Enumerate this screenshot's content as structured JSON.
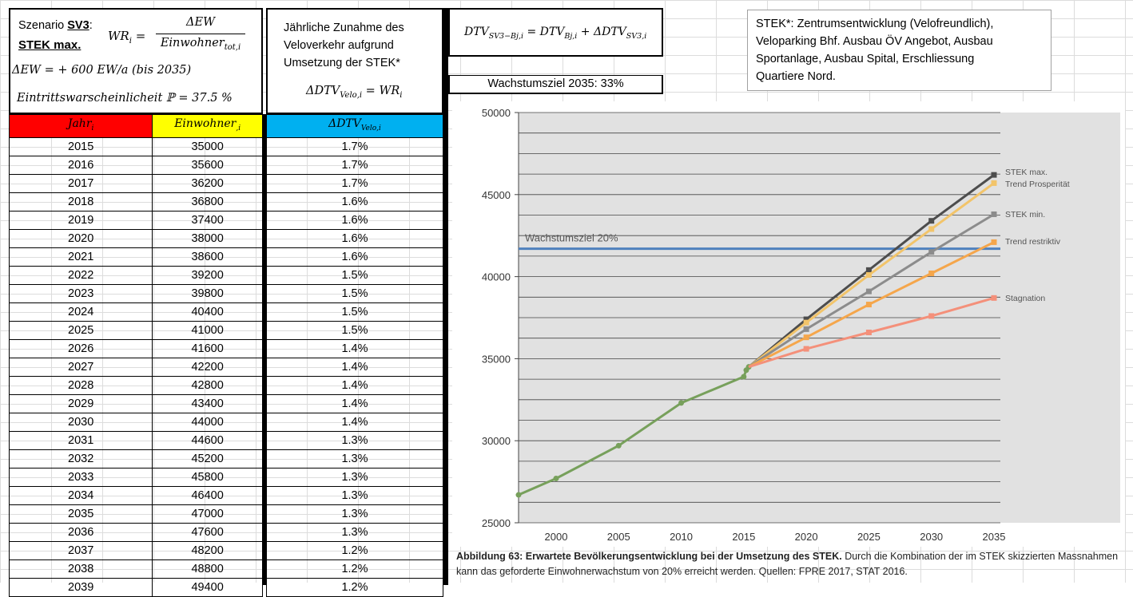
{
  "box1": {
    "szenario_prefix": "Szenario ",
    "szenario_code": "SV3",
    "szenario_colon": ":",
    "szenario_name": "STEK max.",
    "wr_formula_left": "WR",
    "wr_sub": "i",
    "equals": "=",
    "frac_num": "ΔEW",
    "frac_den": "Einwohner",
    "frac_den_sub": "tot,i",
    "delta_ew": "ΔEW = + 600 EW/a  (bis 2035)",
    "probability": "Eintrittswarscheinlicheit ℙ = 37.5 %"
  },
  "box2": {
    "text": [
      "Jährliche Zunahme des",
      "Veloverkehr aufgrund",
      "Umsetzung der STEK*"
    ],
    "formula": "ΔDTV",
    "formula_sub": "Velo,i",
    "formula_rhs": " = WR",
    "formula_rhs_sub": "i"
  },
  "box3": {
    "formula": "DTV",
    "sub1": "SV3−Bj,i",
    "mid": " = DTV",
    "sub2": "Bj,i",
    "plus": " + ΔDTV",
    "sub3": "SV3,i"
  },
  "wachstumsziel": "Wachstumsziel 2035: 33%",
  "stek_note": [
    "STEK*: Zentrumsentwicklung (Velofreundlich),",
    "Veloparking Bhf. Ausbau ÖV Angebot, Ausbau",
    "Sportanlage, Ausbau Spital,  Erschliessung",
    "Quartiere Nord."
  ],
  "table": {
    "headers": [
      "Jahr",
      "Einwohner",
      "ΔDTV"
    ],
    "header_subs": [
      "i",
      ",i",
      "Velo,i"
    ],
    "header_colors": [
      "#ff0000",
      "#ffff00",
      "#00b0f0"
    ],
    "rows": [
      [
        "2015",
        "35000",
        "1.7%"
      ],
      [
        "2016",
        "35600",
        "1.7%"
      ],
      [
        "2017",
        "36200",
        "1.7%"
      ],
      [
        "2018",
        "36800",
        "1.6%"
      ],
      [
        "2019",
        "37400",
        "1.6%"
      ],
      [
        "2020",
        "38000",
        "1.6%"
      ],
      [
        "2021",
        "38600",
        "1.6%"
      ],
      [
        "2022",
        "39200",
        "1.5%"
      ],
      [
        "2023",
        "39800",
        "1.5%"
      ],
      [
        "2024",
        "40400",
        "1.5%"
      ],
      [
        "2025",
        "41000",
        "1.5%"
      ],
      [
        "2026",
        "41600",
        "1.4%"
      ],
      [
        "2027",
        "42200",
        "1.4%"
      ],
      [
        "2028",
        "42800",
        "1.4%"
      ],
      [
        "2029",
        "43400",
        "1.4%"
      ],
      [
        "2030",
        "44000",
        "1.4%"
      ],
      [
        "2031",
        "44600",
        "1.3%"
      ],
      [
        "2032",
        "45200",
        "1.3%"
      ],
      [
        "2033",
        "45800",
        "1.3%"
      ],
      [
        "2034",
        "46400",
        "1.3%"
      ],
      [
        "2035",
        "47000",
        "1.3%"
      ],
      [
        "2036",
        "47600",
        "1.3%"
      ],
      [
        "2037",
        "48200",
        "1.2%"
      ],
      [
        "2038",
        "48800",
        "1.2%"
      ],
      [
        "2039",
        "49400",
        "1.2%"
      ]
    ]
  },
  "chart_data": {
    "type": "line",
    "x_ticks": [
      "2000",
      "2005",
      "2010",
      "2015",
      "2020",
      "2025",
      "2030",
      "2035"
    ],
    "y_ticks": [
      "25000",
      "30000",
      "35000",
      "40000",
      "45000",
      "50000"
    ],
    "xlim": [
      1997,
      2035
    ],
    "ylim": [
      25000,
      50000
    ],
    "grid": true,
    "reference_line": {
      "label": "Wachstumsziel 20%",
      "value": 41700,
      "color": "#4f81bd"
    },
    "series": [
      {
        "name": "",
        "color": "#77a05b",
        "points": [
          [
            1997,
            26700
          ],
          [
            2000,
            27700
          ],
          [
            2005,
            29700
          ],
          [
            2010,
            32300
          ],
          [
            2015,
            33900
          ],
          [
            2015.2,
            34300
          ],
          [
            2015.4,
            34500
          ]
        ]
      },
      {
        "name": "STEK max.",
        "color": "#4d4d4d",
        "points": [
          [
            2015.4,
            34500
          ],
          [
            2020,
            37400
          ],
          [
            2025,
            40400
          ],
          [
            2030,
            43400
          ],
          [
            2035,
            46200
          ]
        ]
      },
      {
        "name": "Trend Prosperität",
        "color": "#f2c46a",
        "points": [
          [
            2015.4,
            34500
          ],
          [
            2020,
            37200
          ],
          [
            2025,
            40100
          ],
          [
            2030,
            42900
          ],
          [
            2035,
            45700
          ]
        ]
      },
      {
        "name": "STEK min.",
        "color": "#8c8c8c",
        "points": [
          [
            2015.4,
            34500
          ],
          [
            2020,
            36800
          ],
          [
            2025,
            39100
          ],
          [
            2030,
            41500
          ],
          [
            2035,
            43800
          ]
        ]
      },
      {
        "name": "Trend restriktiv",
        "color": "#f5a64b",
        "points": [
          [
            2015.4,
            34500
          ],
          [
            2020,
            36300
          ],
          [
            2025,
            38300
          ],
          [
            2030,
            40200
          ],
          [
            2035,
            42100
          ]
        ]
      },
      {
        "name": "Stagnation",
        "color": "#f4907a",
        "points": [
          [
            2015.4,
            34500
          ],
          [
            2020,
            35600
          ],
          [
            2025,
            36600
          ],
          [
            2030,
            37600
          ],
          [
            2035,
            38700
          ]
        ]
      }
    ]
  },
  "caption": {
    "bold": "Abbildung 63: Erwartete Bevölkerungsentwicklung bei der Umsetzung des STEK.",
    "rest": " Durch die Kombination der im STEK skizzierten Massnahmen",
    "line2": "kann das geforderte Einwohnerwachstum von 20% erreicht werden. Quellen: FPRE 2017, STAT 2016."
  }
}
